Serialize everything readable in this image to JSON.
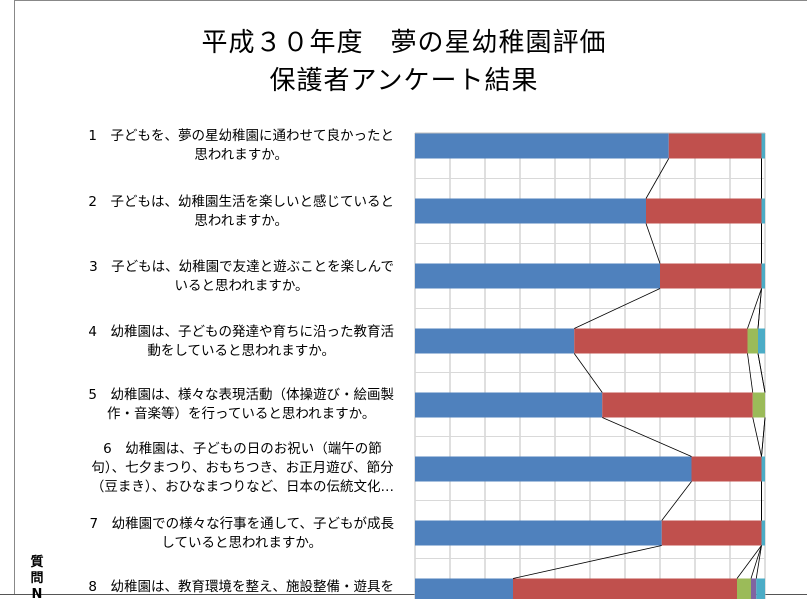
{
  "chart_data": {
    "type": "bar",
    "orientation": "horizontal",
    "stacked": true,
    "title": [
      "平成３０年度　夢の星幼稚園評価",
      "保護者アンケート結果"
    ],
    "ylabel": "質問N",
    "grid": true,
    "xlim": [
      0,
      100
    ],
    "categories": [
      [
        "1　子どもを、夢の星幼稚園に通わせて良かったと",
        "思われますか。"
      ],
      [
        "2　子どもは、幼稚園生活を楽しいと感じていると",
        "思われますか。"
      ],
      [
        "3　子どもは、幼稚園で友達と遊ぶことを楽しんで",
        "いると思われますか。"
      ],
      [
        "4　幼稚園は、子どもの発達や育ちに沿った教育活",
        "動をしていると思われますか。"
      ],
      [
        "5　幼稚園は、様々な表現活動（体操遊び・絵画製",
        "作・音楽等）を行っていると思われますか。"
      ],
      [
        "6　幼稚園は、子どもの日のお祝い（端午の節",
        "句）、七夕まつり、おもちつき、お正月遊び、節分",
        "（豆まき）、おひなまつりなど、日本の伝統文化…"
      ],
      [
        "7　幼稚園での様々な行事を通して、子どもが成長",
        "していると思われますか。"
      ],
      [
        "8　幼稚園は、教育環境を整え、施設整備・遊具を"
      ]
    ],
    "series": [
      {
        "color": "#4F81BD",
        "values": [
          72.5,
          66,
          70,
          45.5,
          53.5,
          79,
          70.5,
          28
        ]
      },
      {
        "color": "#C0504D",
        "values": [
          26.5,
          33,
          29,
          49.5,
          43,
          20,
          28.5,
          64
        ]
      },
      {
        "color": "#9BBB59",
        "values": [
          0,
          0,
          0,
          3,
          3.5,
          0,
          0,
          4
        ]
      },
      {
        "color": "#8064A2",
        "values": [
          0,
          0,
          0,
          0,
          0,
          0,
          0,
          1.5
        ]
      },
      {
        "color": "#4BACC6",
        "values": [
          1,
          1,
          1,
          2,
          0,
          1,
          1,
          2.5
        ]
      }
    ]
  }
}
